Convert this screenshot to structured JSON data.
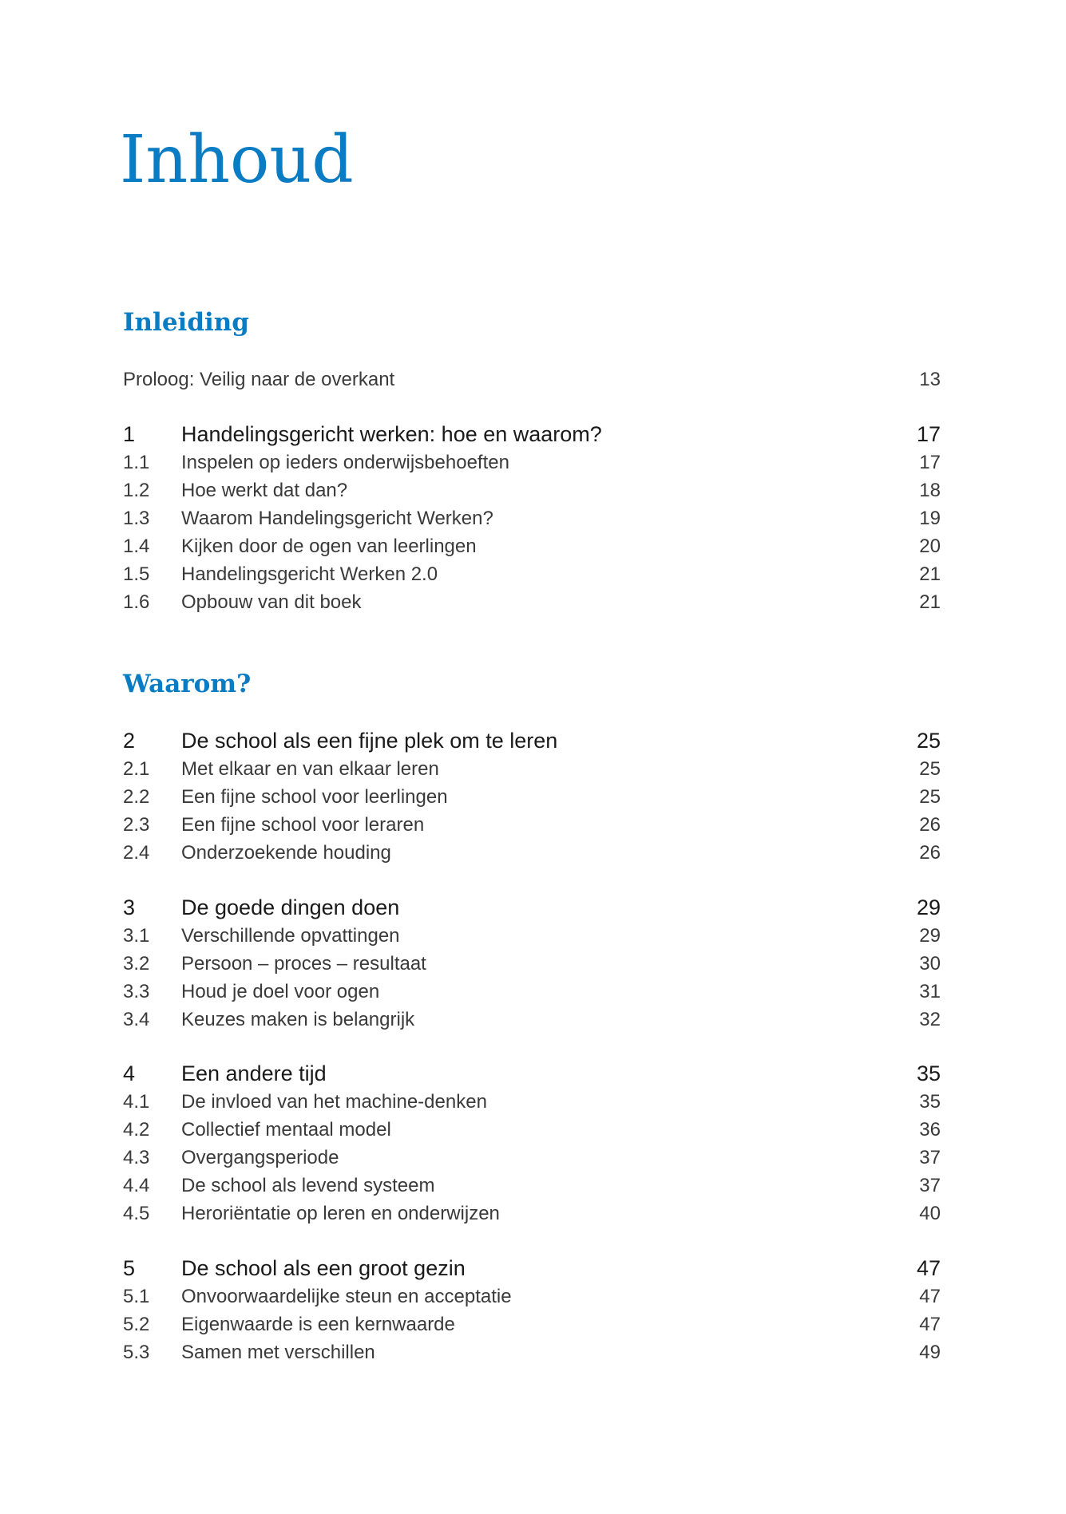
{
  "title": "Inhoud",
  "parts": [
    {
      "heading": "Inleiding",
      "prologue": {
        "text": "Proloog: Veilig naar de overkant",
        "page": "13"
      },
      "chapters": [
        {
          "num": "1",
          "title": "Handelingsgericht werken: hoe en waarom?",
          "page": "17",
          "sections": [
            {
              "num": "1.1",
              "title": "Inspelen op ieders onderwijsbehoeften",
              "page": "17"
            },
            {
              "num": "1.2",
              "title": "Hoe werkt dat dan?",
              "page": "18"
            },
            {
              "num": "1.3",
              "title": "Waarom Handelingsgericht Werken?",
              "page": "19"
            },
            {
              "num": "1.4",
              "title": "Kijken door de ogen van leerlingen",
              "page": "20"
            },
            {
              "num": "1.5",
              "title": "Handelingsgericht Werken 2.0",
              "page": "21"
            },
            {
              "num": "1.6",
              "title": "Opbouw van dit boek",
              "page": "21"
            }
          ]
        }
      ]
    },
    {
      "heading": "Waarom?",
      "chapters": [
        {
          "num": "2",
          "title": "De school als een fijne plek om te leren",
          "page": "25",
          "sections": [
            {
              "num": "2.1",
              "title": "Met elkaar en van elkaar leren",
              "page": "25"
            },
            {
              "num": "2.2",
              "title": "Een fijne school voor leerlingen",
              "page": "25"
            },
            {
              "num": "2.3",
              "title": "Een fijne school voor leraren",
              "page": "26"
            },
            {
              "num": "2.4",
              "title": "Onderzoekende houding",
              "page": "26"
            }
          ]
        },
        {
          "num": "3",
          "title": "De goede dingen doen",
          "page": "29",
          "sections": [
            {
              "num": "3.1",
              "title": "Verschillende opvattingen",
              "page": "29"
            },
            {
              "num": "3.2",
              "title": "Persoon – proces – resultaat",
              "page": "30"
            },
            {
              "num": "3.3",
              "title": "Houd je doel voor ogen",
              "page": "31"
            },
            {
              "num": "3.4",
              "title": "Keuzes maken is belangrijk",
              "page": "32"
            }
          ]
        },
        {
          "num": "4",
          "title": "Een andere tijd",
          "page": "35",
          "sections": [
            {
              "num": "4.1",
              "title": "De invloed van het machine-denken",
              "page": "35"
            },
            {
              "num": "4.2",
              "title": "Collectief mentaal model",
              "page": "36"
            },
            {
              "num": "4.3",
              "title": "Overgangsperiode",
              "page": "37"
            },
            {
              "num": "4.4",
              "title": "De school als levend systeem",
              "page": "37"
            },
            {
              "num": "4.5",
              "title": "Heroriëntatie op leren en onderwijzen",
              "page": "40"
            }
          ]
        },
        {
          "num": "5",
          "title": "De school als een groot gezin",
          "page": "47",
          "sections": [
            {
              "num": "5.1",
              "title": "Onvoorwaardelijke steun en acceptatie",
              "page": "47"
            },
            {
              "num": "5.2",
              "title": "Eigenwaarde is een kernwaarde",
              "page": "47"
            },
            {
              "num": "5.3",
              "title": "Samen met verschillen",
              "page": "49"
            }
          ]
        }
      ]
    }
  ]
}
